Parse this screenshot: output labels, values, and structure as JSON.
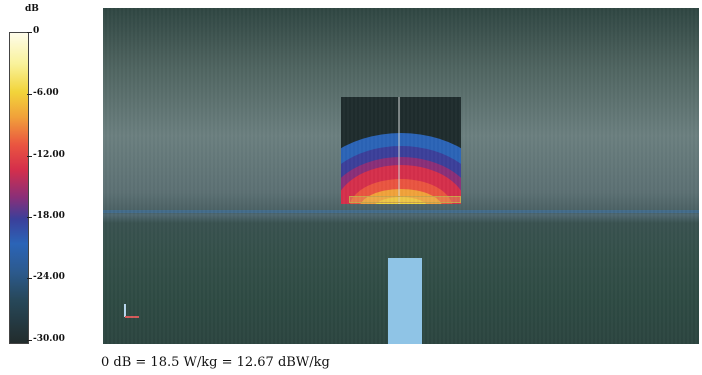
{
  "scale": {
    "unit": "dB",
    "ticks": [
      {
        "label": "0",
        "value": 0
      },
      {
        "label": "-6.00",
        "value": -6
      },
      {
        "label": "-12.00",
        "value": -12
      },
      {
        "label": "-18.00",
        "value": -18
      },
      {
        "label": "-24.00",
        "value": -24
      },
      {
        "label": "-30.00",
        "value": -30
      }
    ],
    "colors": {
      "max": "#fefcea",
      "yellow": "#f2d43a",
      "orange": "#f1a23a",
      "red": "#d52f4b",
      "purple": "#8a2f78",
      "blue": "#2b64b7",
      "min": "#222c2c"
    }
  },
  "field_colors": {
    "background": "#4f6566",
    "block": "#8fc4e6",
    "plate_outline": "#c9a34a"
  },
  "caption": "0 dB = 18.5 W/kg = 12.67 dBW/kg"
}
